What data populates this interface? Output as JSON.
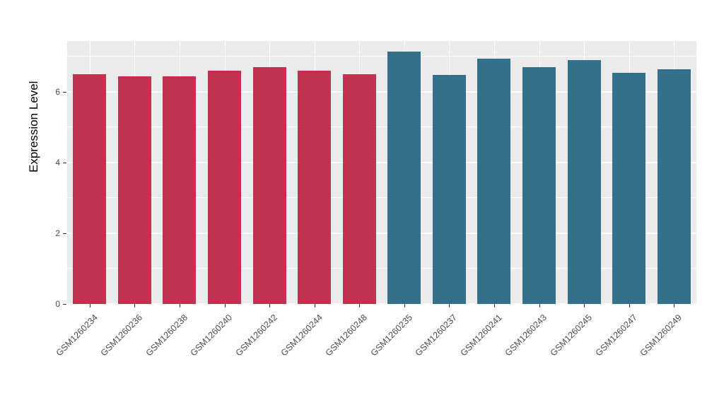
{
  "chart_data": {
    "type": "bar",
    "title": "",
    "xlabel": "",
    "ylabel": "Expression Level",
    "ylim": [
      0,
      7.44
    ],
    "yticks": [
      0,
      2,
      4,
      6
    ],
    "grid": {
      "major": [
        0,
        2,
        4,
        6
      ],
      "minor": [
        1,
        3,
        5,
        7
      ]
    },
    "legend": "none",
    "panel_bg": "#EBEBEB",
    "categories": [
      "GSM1260234",
      "GSM1260236",
      "GSM1260238",
      "GSM1260240",
      "GSM1260242",
      "GSM1260244",
      "GSM1260248",
      "GSM1260235",
      "GSM1260237",
      "GSM1260241",
      "GSM1260243",
      "GSM1260245",
      "GSM1260247",
      "GSM1260249"
    ],
    "values": [
      6.5,
      6.45,
      6.45,
      6.6,
      6.7,
      6.6,
      6.5,
      7.15,
      6.48,
      6.95,
      6.7,
      6.9,
      6.55,
      6.65
    ],
    "bar_colors": [
      "#C2314F",
      "#C2314F",
      "#C2314F",
      "#C2314F",
      "#C2314F",
      "#C2314F",
      "#C2314F",
      "#35708A",
      "#35708A",
      "#35708A",
      "#35708A",
      "#35708A",
      "#35708A",
      "#35708A"
    ],
    "group_colors": {
      "group1": "#C2314F",
      "group2": "#35708A"
    },
    "bar_width_fraction": 0.74
  }
}
